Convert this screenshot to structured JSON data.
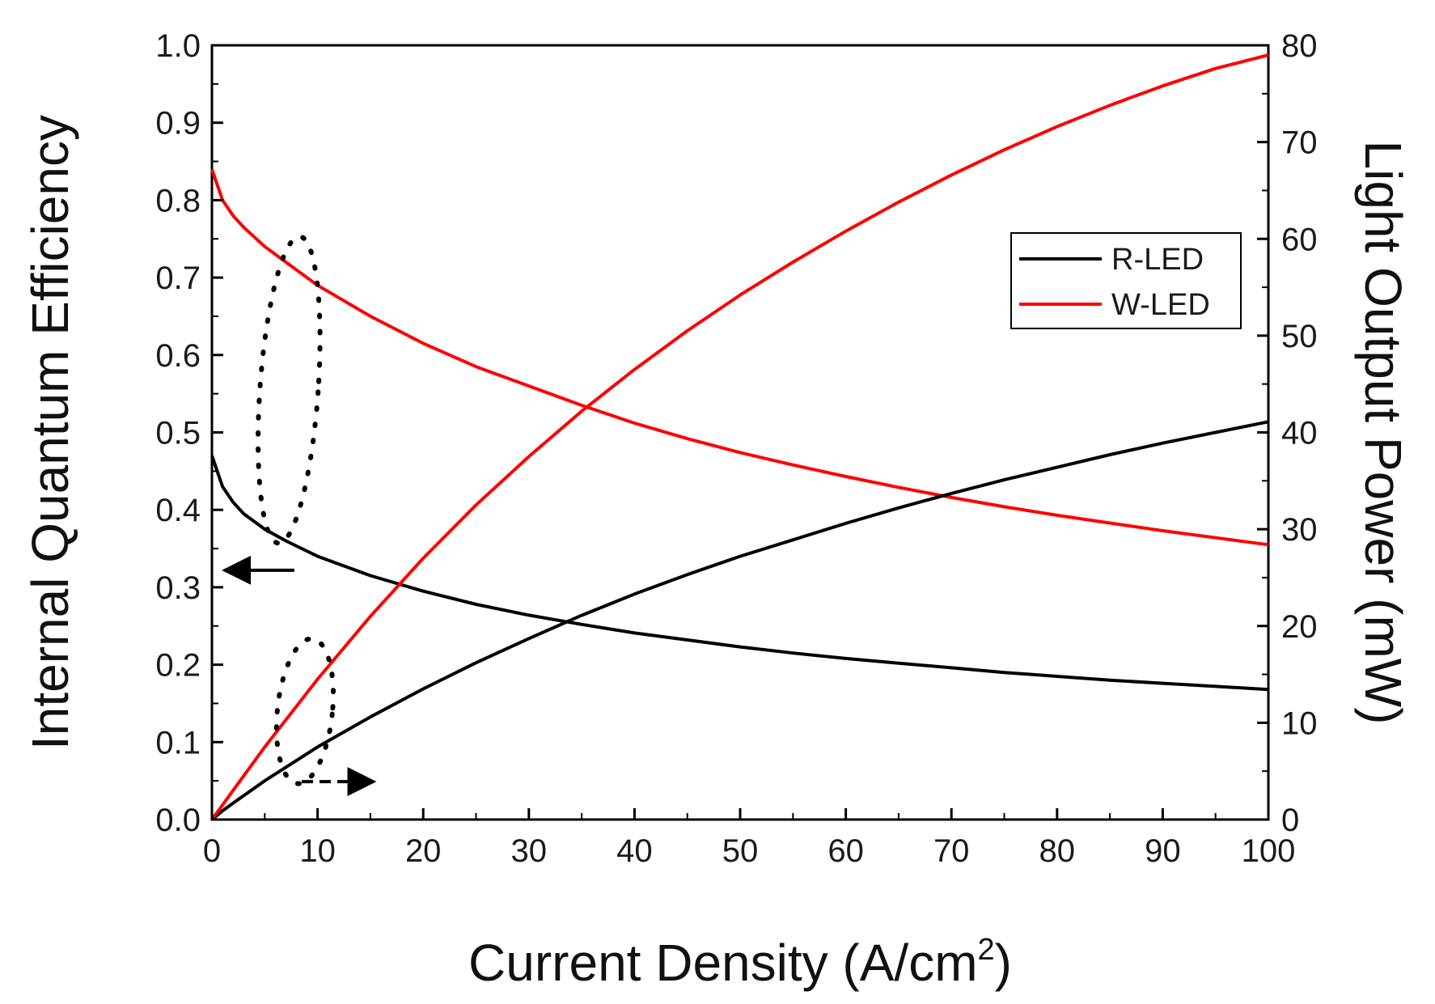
{
  "chart_data": {
    "type": "line",
    "title": "",
    "xlabel": "Current Density (A/cm",
    "xlabel_superscript": "2",
    "xlabel_suffix": ")",
    "ylabel_left": "Internal Quantum Efficiency",
    "ylabel_right": "Light Output Power (mW)",
    "xlim": [
      0,
      100
    ],
    "ylim_left": [
      0.0,
      1.0
    ],
    "ylim_right": [
      0,
      80
    ],
    "x_ticks": [
      "0",
      "10",
      "20",
      "30",
      "40",
      "50",
      "60",
      "70",
      "80",
      "90",
      "100"
    ],
    "y_left_ticks": [
      "0.0",
      "0.1",
      "0.2",
      "0.3",
      "0.4",
      "0.5",
      "0.6",
      "0.7",
      "0.8",
      "0.9",
      "1.0"
    ],
    "y_right_ticks": [
      "0",
      "10",
      "20",
      "30",
      "40",
      "50",
      "60",
      "70",
      "80"
    ],
    "grid": false,
    "legend_position": "upper-right",
    "legend": [
      {
        "name": "R-LED",
        "color": "#000000"
      },
      {
        "name": "W-LED",
        "color": "#ff0000"
      }
    ],
    "series": [
      {
        "name": "R-LED",
        "quantity": "IQE",
        "axis": "left",
        "color": "#000000",
        "x": [
          0,
          0.5,
          1,
          2,
          3,
          5,
          7,
          10,
          15,
          20,
          25,
          30,
          35,
          40,
          45,
          50,
          55,
          60,
          65,
          70,
          75,
          80,
          85,
          90,
          95,
          100
        ],
        "values": [
          0.47,
          0.45,
          0.43,
          0.41,
          0.395,
          0.375,
          0.36,
          0.34,
          0.315,
          0.295,
          0.278,
          0.264,
          0.252,
          0.241,
          0.232,
          0.223,
          0.215,
          0.208,
          0.202,
          0.196,
          0.19,
          0.185,
          0.18,
          0.176,
          0.172,
          0.168
        ]
      },
      {
        "name": "W-LED",
        "quantity": "IQE",
        "axis": "left",
        "color": "#ff0000",
        "x": [
          0,
          0.5,
          1,
          2,
          3,
          5,
          7,
          10,
          15,
          20,
          25,
          30,
          35,
          40,
          45,
          50,
          55,
          60,
          65,
          70,
          75,
          80,
          85,
          90,
          95,
          100
        ],
        "values": [
          0.84,
          0.82,
          0.8,
          0.78,
          0.765,
          0.74,
          0.72,
          0.69,
          0.65,
          0.615,
          0.585,
          0.56,
          0.535,
          0.512,
          0.492,
          0.474,
          0.458,
          0.443,
          0.429,
          0.416,
          0.404,
          0.393,
          0.383,
          0.373,
          0.364,
          0.355
        ]
      },
      {
        "name": "R-LED",
        "quantity": "Light Output Power",
        "axis": "right",
        "color": "#000000",
        "x": [
          0,
          1,
          2,
          5,
          10,
          15,
          20,
          25,
          30,
          35,
          40,
          45,
          50,
          55,
          60,
          65,
          70,
          75,
          80,
          85,
          90,
          95,
          100
        ],
        "values": [
          0,
          0.9,
          1.7,
          4.0,
          7.5,
          10.6,
          13.5,
          16.2,
          18.7,
          21.1,
          23.3,
          25.3,
          27.2,
          28.9,
          30.6,
          32.2,
          33.7,
          35.1,
          36.4,
          37.7,
          38.9,
          40.0,
          41.1
        ]
      },
      {
        "name": "W-LED",
        "quantity": "Light Output Power",
        "axis": "right",
        "color": "#ff0000",
        "x": [
          0,
          1,
          2,
          5,
          10,
          15,
          20,
          25,
          30,
          35,
          40,
          45,
          50,
          55,
          60,
          65,
          70,
          75,
          80,
          85,
          90,
          95,
          100
        ],
        "values": [
          0,
          1.5,
          3.0,
          7.5,
          14.5,
          21.0,
          27.0,
          32.5,
          37.5,
          42.2,
          46.5,
          50.5,
          54.2,
          57.6,
          60.8,
          63.8,
          66.6,
          69.2,
          71.6,
          73.8,
          75.8,
          77.6,
          79.0
        ]
      }
    ],
    "annotations": [
      {
        "type": "dotted-ellipse",
        "label": "",
        "points_to": "IQE curves",
        "arrow": "left"
      },
      {
        "type": "dotted-ellipse",
        "label": "",
        "points_to": "Light Output Power curves",
        "arrow": "right"
      }
    ]
  }
}
